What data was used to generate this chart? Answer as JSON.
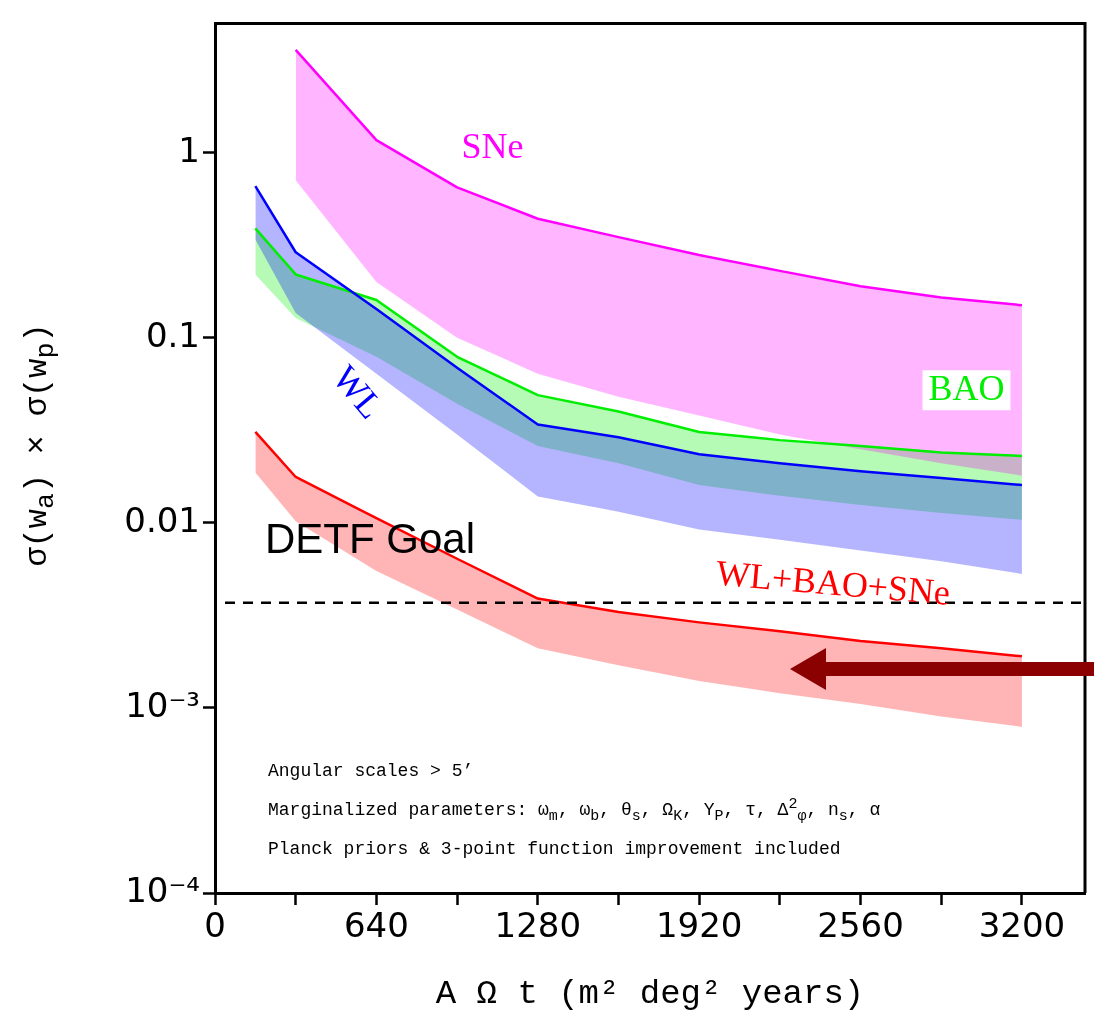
{
  "chart_data": {
    "type": "line",
    "xlabel": "A Ω t (m² deg² years)",
    "ylabel": "σ(w$_{a}$) × σ(w$_{p}$)",
    "log": "y",
    "grid": false,
    "legend": false,
    "marker": "none",
    "line_style": "solid",
    "xlim": [
      0,
      3450
    ],
    "ylim": [
      0.0001,
      5
    ],
    "xticks": [
      0,
      {
        "value": 320,
        "label": null
      },
      640,
      {
        "value": 960,
        "label": null
      },
      1280,
      {
        "value": 1600,
        "label": null
      },
      1920,
      {
        "value": 2240,
        "label": null
      },
      2560,
      {
        "value": 2880,
        "label": null
      },
      3200
    ],
    "yticks": [
      {
        "value": 0.0001,
        "label": "10⁻⁴"
      },
      {
        "value": 0.001,
        "label": "10⁻³"
      },
      0.01,
      0.1,
      1
    ],
    "series": [
      {
        "name": "SNe",
        "color": "#ff00ff",
        "x": [
          320,
          640,
          960,
          1280,
          1600,
          1920,
          2240,
          2560,
          2880,
          3200
        ],
        "values": [
          3.6,
          1.17,
          0.65,
          0.44,
          0.35,
          0.28,
          0.23,
          0.19,
          0.165,
          0.15
        ],
        "upper": [
          3.6,
          1.17,
          0.65,
          0.44,
          0.35,
          0.28,
          0.23,
          0.19,
          0.165,
          0.15
        ],
        "lower": [
          0.71,
          0.2,
          0.1,
          0.064,
          0.048,
          0.038,
          0.03,
          0.025,
          0.021,
          0.018
        ]
      },
      {
        "name": "WL",
        "color": "#0000ff",
        "x": [
          160,
          320,
          640,
          960,
          1280,
          1600,
          1920,
          2240,
          2560,
          2880,
          3200
        ],
        "values": [
          0.66,
          0.29,
          0.143,
          0.069,
          0.034,
          0.029,
          0.0235,
          0.021,
          0.019,
          0.0175,
          0.016
        ],
        "upper": [
          0.66,
          0.29,
          0.143,
          0.069,
          0.034,
          0.029,
          0.0235,
          0.021,
          0.019,
          0.0175,
          0.016
        ],
        "lower": [
          0.34,
          0.136,
          0.064,
          0.03,
          0.0139,
          0.0115,
          0.0092,
          0.0081,
          0.0071,
          0.0062,
          0.0053
        ]
      },
      {
        "name": "BAO",
        "color": "#00ee00",
        "x": [
          160,
          320,
          640,
          960,
          1280,
          1600,
          1920,
          2240,
          2560,
          2880,
          3200
        ],
        "values": [
          0.39,
          0.22,
          0.16,
          0.079,
          0.049,
          0.04,
          0.031,
          0.028,
          0.026,
          0.024,
          0.023
        ],
        "upper": [
          0.39,
          0.22,
          0.16,
          0.079,
          0.049,
          0.04,
          0.031,
          0.028,
          0.026,
          0.024,
          0.023
        ],
        "lower": [
          0.22,
          0.128,
          0.079,
          0.044,
          0.026,
          0.021,
          0.016,
          0.014,
          0.0125,
          0.0113,
          0.0104
        ]
      },
      {
        "name": "WL+BAO+SNe",
        "color": "#ff0000",
        "x": [
          160,
          320,
          640,
          960,
          1280,
          1600,
          1920,
          2240,
          2560,
          2880,
          3200
        ],
        "values": [
          0.031,
          0.0177,
          0.0106,
          0.0064,
          0.0039,
          0.0033,
          0.0029,
          0.0026,
          0.0023,
          0.0021,
          0.0019
        ],
        "upper": [
          0.031,
          0.0177,
          0.0106,
          0.0064,
          0.0039,
          0.0033,
          0.0029,
          0.0026,
          0.0023,
          0.0021,
          0.0019
        ],
        "lower": [
          0.0187,
          0.0102,
          0.0055,
          0.0034,
          0.0021,
          0.0017,
          0.0014,
          0.0012,
          0.00105,
          0.0009,
          0.00079
        ]
      }
    ],
    "ref_lines": [
      {
        "axis": "y",
        "value": 0.0037,
        "label": "DETF Goal",
        "color": "#000000",
        "line_style": "dashed"
      }
    ],
    "annotations": [
      "Angular scales > 5’",
      "Marginalized parameters: ω$_{m}$, ω$_{b}$, θ$_{s}$, Ω$_{K}$, Y$_{P}$, τ, Δ$^{2}$$_{φ}$, n$_{s}$, α",
      "Planck priors & 3-point function improvement included"
    ]
  }
}
